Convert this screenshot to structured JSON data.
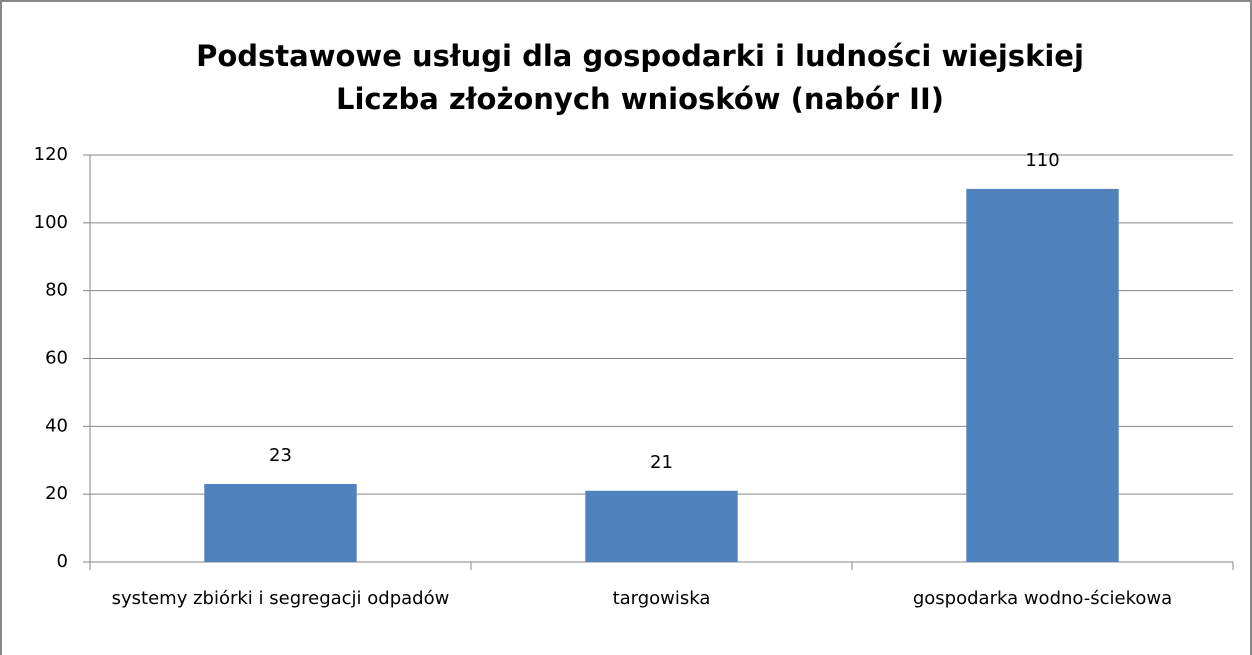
{
  "chart_data": {
    "type": "bar",
    "title": "Podstawowe usługi dla gospodarki i ludności wiejskiej",
    "subtitle": "Liczba złożonych wniosków (nabór II)",
    "categories": [
      "systemy zbiórki i segregacji odpadów",
      "targowiska",
      "gospodarka wodno-ściekowa"
    ],
    "values": [
      23,
      21,
      110
    ],
    "color": "#4f81bd",
    "ylim": [
      0,
      120
    ],
    "yticks": [
      0,
      20,
      40,
      60,
      80,
      100,
      120
    ],
    "grid": true
  }
}
